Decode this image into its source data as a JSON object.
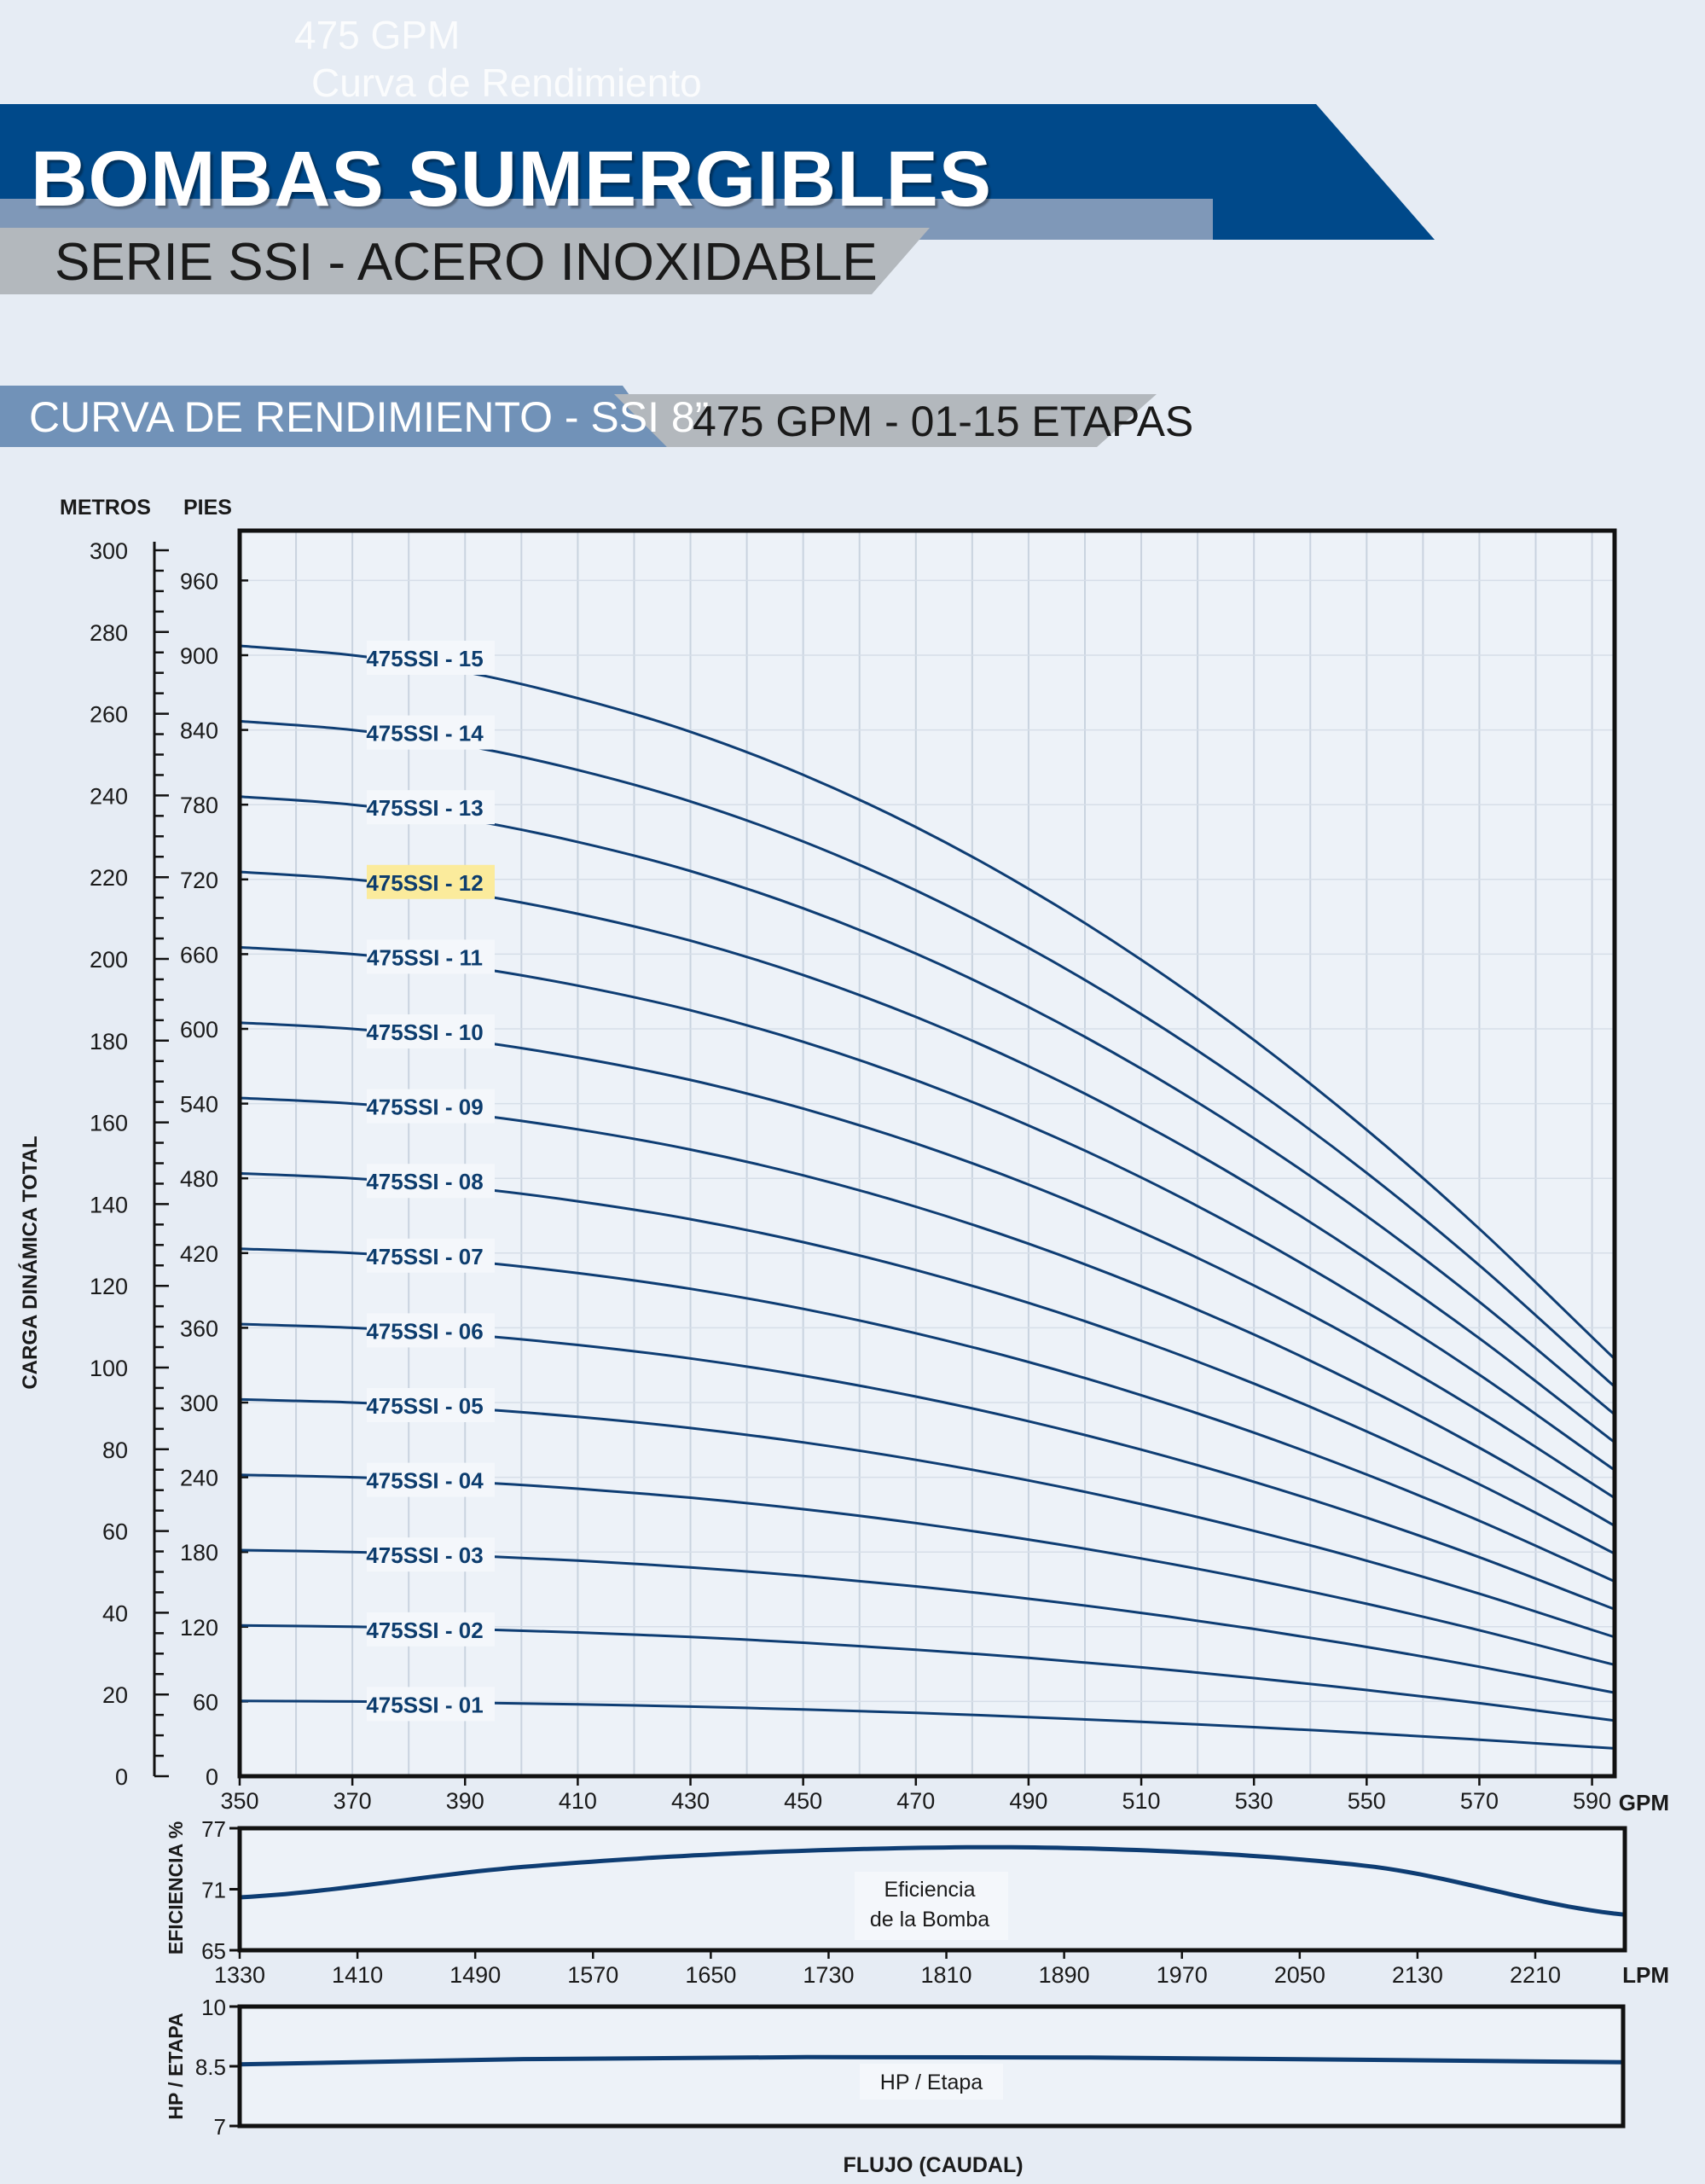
{
  "watermark": {
    "line1": "475 GPM",
    "line2": "Curva de Rendimiento"
  },
  "header": {
    "title": "BOMBAS SUMERGIBLES",
    "subtitle": "SERIE SSI - ACERO INOXIDABLE",
    "colors": {
      "primary": "#00498a",
      "light": "#7f98b8",
      "gray": "#b3b8bd"
    }
  },
  "section": {
    "left": "CURVA DE RENDIMIENTO - SSI 8”",
    "right": "475 GPM - 01-15 ETAPAS"
  },
  "chart_data": [
    {
      "type": "line",
      "title": "Curva de Rendimiento - SSI 8”",
      "ylabel": "CARGA DINÁMICA TOTAL",
      "ylabel_left_unit": "METROS",
      "ylabel_right_unit": "PIES",
      "xlabel_unit": "GPM",
      "x_range": [
        350,
        594
      ],
      "x_ticks": [
        350,
        370,
        390,
        410,
        430,
        450,
        470,
        490,
        510,
        530,
        550,
        570,
        590
      ],
      "y_feet_range": [
        0,
        1000
      ],
      "y_feet_ticks": [
        0,
        60,
        120,
        180,
        240,
        300,
        360,
        420,
        480,
        540,
        600,
        660,
        720,
        780,
        840,
        900,
        960
      ],
      "y_meters_ticks": [
        0,
        20,
        40,
        60,
        80,
        100,
        120,
        140,
        160,
        180,
        200,
        220,
        240,
        260,
        280,
        300
      ],
      "line_color": "#0e3d73",
      "highlight_color": "#fbeb9c",
      "series": [
        {
          "name": "475SSI - 01",
          "head_per_stage_ft": [
            60.5,
            60.0,
            59.1,
            57.7,
            55.9,
            53.6,
            50.8,
            47.5,
            43.7,
            39.4,
            34.6,
            29.3,
            23.5
          ]
        },
        {
          "name": "475SSI - 02",
          "head_per_stage_ft": [
            60.5,
            60.0,
            59.1,
            57.7,
            55.9,
            53.6,
            50.8,
            47.5,
            43.7,
            39.4,
            34.6,
            29.3,
            23.5
          ]
        },
        {
          "name": "475SSI - 03",
          "head_per_stage_ft": [
            60.5,
            60.0,
            59.1,
            57.7,
            55.9,
            53.6,
            50.8,
            47.5,
            43.7,
            39.4,
            34.6,
            29.3,
            23.5
          ]
        },
        {
          "name": "475SSI - 04",
          "head_per_stage_ft": [
            60.5,
            60.0,
            59.1,
            57.7,
            55.9,
            53.6,
            50.8,
            47.5,
            43.7,
            39.4,
            34.6,
            29.3,
            23.5
          ]
        },
        {
          "name": "475SSI - 05",
          "head_per_stage_ft": [
            60.5,
            60.0,
            59.1,
            57.7,
            55.9,
            53.6,
            50.8,
            47.5,
            43.7,
            39.4,
            34.6,
            29.3,
            23.5
          ]
        },
        {
          "name": "475SSI - 06",
          "head_per_stage_ft": [
            60.5,
            60.0,
            59.1,
            57.7,
            55.9,
            53.6,
            50.8,
            47.5,
            43.7,
            39.4,
            34.6,
            29.3,
            23.5
          ]
        },
        {
          "name": "475SSI - 07",
          "head_per_stage_ft": [
            60.5,
            60.0,
            59.1,
            57.7,
            55.9,
            53.6,
            50.8,
            47.5,
            43.7,
            39.4,
            34.6,
            29.3,
            23.5
          ]
        },
        {
          "name": "475SSI - 08",
          "head_per_stage_ft": [
            60.5,
            60.0,
            59.1,
            57.7,
            55.9,
            53.6,
            50.8,
            47.5,
            43.7,
            39.4,
            34.6,
            29.3,
            23.5
          ]
        },
        {
          "name": "475SSI - 09",
          "head_per_stage_ft": [
            60.5,
            60.0,
            59.1,
            57.7,
            55.9,
            53.6,
            50.8,
            47.5,
            43.7,
            39.4,
            34.6,
            29.3,
            23.5
          ]
        },
        {
          "name": "475SSI - 10",
          "head_per_stage_ft": [
            60.5,
            60.0,
            59.1,
            57.7,
            55.9,
            53.6,
            50.8,
            47.5,
            43.7,
            39.4,
            34.6,
            29.3,
            23.5
          ]
        },
        {
          "name": "475SSI - 11",
          "head_per_stage_ft": [
            60.5,
            60.0,
            59.1,
            57.7,
            55.9,
            53.6,
            50.8,
            47.5,
            43.7,
            39.4,
            34.6,
            29.3,
            23.5
          ]
        },
        {
          "name": "475SSI - 12",
          "highlight": true,
          "head_per_stage_ft": [
            60.5,
            60.0,
            59.1,
            57.7,
            55.9,
            53.6,
            50.8,
            47.5,
            43.7,
            39.4,
            34.6,
            29.3,
            23.5
          ]
        },
        {
          "name": "475SSI - 13",
          "head_per_stage_ft": [
            60.5,
            60.0,
            59.1,
            57.7,
            55.9,
            53.6,
            50.8,
            47.5,
            43.7,
            39.4,
            34.6,
            29.3,
            23.5
          ]
        },
        {
          "name": "475SSI - 14",
          "head_per_stage_ft": [
            60.5,
            60.0,
            59.1,
            57.7,
            55.9,
            53.6,
            50.8,
            47.5,
            43.7,
            39.4,
            34.6,
            29.3,
            23.5
          ]
        },
        {
          "name": "475SSI - 15",
          "head_per_stage_ft": [
            60.5,
            60.0,
            59.1,
            57.7,
            55.9,
            53.6,
            50.8,
            47.5,
            43.7,
            39.4,
            34.6,
            29.3,
            23.5
          ]
        }
      ]
    },
    {
      "type": "line",
      "title": "Eficiencia de la Bomba",
      "ylabel": "EFICIENCIA %",
      "y_range": [
        65,
        77
      ],
      "y_ticks": [
        65,
        71,
        77
      ],
      "x_range": [
        350,
        594
      ],
      "annotation": [
        "Eficiencia",
        "de la Bomba"
      ],
      "series": [
        {
          "name": "Eficiencia",
          "x": [
            350,
            400,
            450,
            500,
            550,
            594
          ],
          "values": [
            70.2,
            73.2,
            74.8,
            75.0,
            73.2,
            68.5
          ]
        }
      ]
    },
    {
      "type": "line",
      "title": "HP / Etapa",
      "ylabel": "HP / ETAPA",
      "y_range": [
        7,
        10
      ],
      "y_ticks": [
        7,
        8.5,
        10
      ],
      "x_range": [
        350,
        594
      ],
      "annotation": "HP / Etapa",
      "series": [
        {
          "name": "HP / Etapa",
          "x": [
            350,
            400,
            450,
            500,
            550,
            594
          ],
          "values": [
            8.55,
            8.68,
            8.73,
            8.72,
            8.66,
            8.6
          ]
        }
      ],
      "x2_unit": "LPM",
      "x2_ticks": [
        1330,
        1410,
        1490,
        1570,
        1650,
        1730,
        1810,
        1890,
        1970,
        2050,
        2130,
        2210
      ],
      "xlabel": "FLUJO (CAUDAL)"
    }
  ]
}
